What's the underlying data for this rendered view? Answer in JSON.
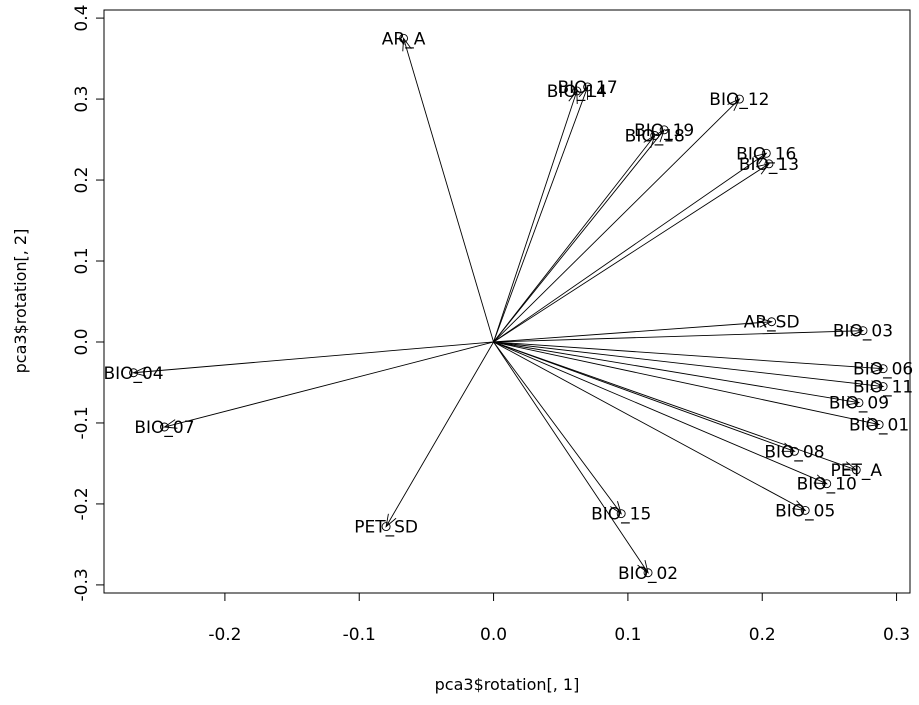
{
  "chart_data": {
    "type": "scatter",
    "subtype": "loading-vectors",
    "title": "",
    "xlabel": "pca3$rotation[, 1]",
    "ylabel": "pca3$rotation[, 2]",
    "xlim": [
      -0.29,
      0.31
    ],
    "ylim": [
      -0.31,
      0.41
    ],
    "xticks": [
      -0.2,
      -0.1,
      0.0,
      0.1,
      0.2,
      0.3
    ],
    "xtick_labels": [
      "-0.2",
      "-0.1",
      "0.0",
      "0.1",
      "0.2",
      "0.3"
    ],
    "yticks": [
      -0.3,
      -0.2,
      -0.1,
      0.0,
      0.1,
      0.2,
      0.3,
      0.4
    ],
    "ytick_labels": [
      "-0.3",
      "-0.2",
      "-0.1",
      "0.0",
      "0.1",
      "0.2",
      "0.3",
      "0.4"
    ],
    "grid": false,
    "origin": [
      0,
      0
    ],
    "points": [
      {
        "label": "AR_A",
        "x": -0.067,
        "y": 0.375
      },
      {
        "label": "BIO_17",
        "x": 0.07,
        "y": 0.315
      },
      {
        "label": "BIO_14",
        "x": 0.062,
        "y": 0.31
      },
      {
        "label": "BIO_12",
        "x": 0.183,
        "y": 0.3
      },
      {
        "label": "BIO_19",
        "x": 0.127,
        "y": 0.262
      },
      {
        "label": "BIO_18",
        "x": 0.12,
        "y": 0.255
      },
      {
        "label": "BIO_16",
        "x": 0.203,
        "y": 0.233
      },
      {
        "label": "BIO_13",
        "x": 0.205,
        "y": 0.22
      },
      {
        "label": "AR_SD",
        "x": 0.207,
        "y": 0.025
      },
      {
        "label": "BIO_03",
        "x": 0.275,
        "y": 0.014
      },
      {
        "label": "BIO_06",
        "x": 0.29,
        "y": -0.033
      },
      {
        "label": "BIO_11",
        "x": 0.29,
        "y": -0.055
      },
      {
        "label": "BIO_09",
        "x": 0.272,
        "y": -0.075
      },
      {
        "label": "BIO_01",
        "x": 0.287,
        "y": -0.102
      },
      {
        "label": "BIO_08",
        "x": 0.224,
        "y": -0.135
      },
      {
        "label": "PET_A",
        "x": 0.27,
        "y": -0.158
      },
      {
        "label": "BIO_10",
        "x": 0.248,
        "y": -0.175
      },
      {
        "label": "BIO_05",
        "x": 0.232,
        "y": -0.208
      },
      {
        "label": "BIO_15",
        "x": 0.095,
        "y": -0.212
      },
      {
        "label": "BIO_02",
        "x": 0.115,
        "y": -0.285
      },
      {
        "label": "BIO_04",
        "x": -0.268,
        "y": -0.038
      },
      {
        "label": "BIO_07",
        "x": -0.245,
        "y": -0.105
      },
      {
        "label": "PET_SD",
        "x": -0.08,
        "y": -0.228
      }
    ]
  }
}
